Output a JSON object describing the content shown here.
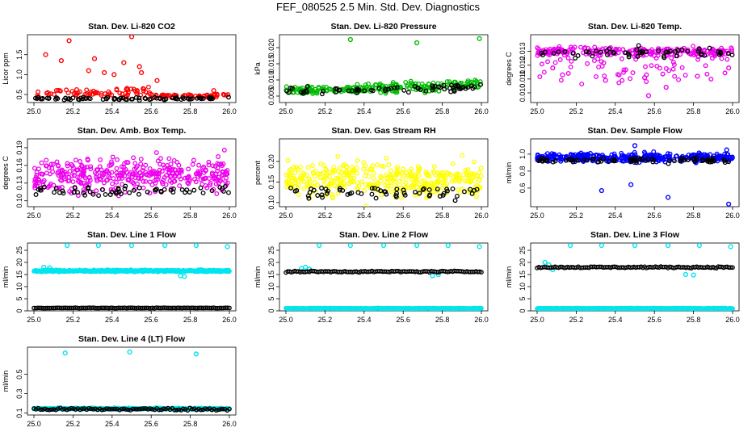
{
  "title": "FEF_080525  2.5 Min. Std. Dev. Diagnostics",
  "chart_data": [
    {
      "type": "scatter",
      "title": "Stan. Dev. Li-820 CO2",
      "ylabel": "Licor ppm",
      "xlim": [
        25.0,
        26.0
      ],
      "ylim": [
        0.3,
        2.0
      ],
      "xticks": [
        "25.0",
        "25.2",
        "25.4",
        "25.6",
        "25.8",
        "26.0"
      ],
      "yticks": [
        "0.5",
        "1.0",
        "1.5"
      ],
      "ytick_values": [
        0.5,
        1.0,
        1.5
      ],
      "series": [
        {
          "name": "red",
          "color": "#ff0000",
          "base": 0.55,
          "spread": 0.12,
          "n": 130,
          "cutoff": 0.62,
          "outliers": [
            [
              25.06,
              1.5
            ],
            [
              25.14,
              1.35
            ],
            [
              25.18,
              1.85
            ],
            [
              25.28,
              1.1
            ],
            [
              25.31,
              1.4
            ],
            [
              25.36,
              1.05
            ],
            [
              25.41,
              1.0
            ],
            [
              25.46,
              1.3
            ],
            [
              25.5,
              1.95
            ],
            [
              25.54,
              1.2
            ],
            [
              25.55,
              1.05
            ],
            [
              25.63,
              0.85
            ],
            [
              25.92,
              0.6
            ]
          ]
        },
        {
          "name": "black",
          "color": "#000000",
          "base": 0.4,
          "spread": 0.03,
          "n": 80
        }
      ]
    },
    {
      "type": "scatter",
      "title": "Stan. Dev. Li-820 Pressure",
      "ylabel": "kPa",
      "xlim": [
        25.0,
        26.0
      ],
      "ylim": [
        0.003,
        0.024
      ],
      "xticks": [
        "25.0",
        "25.2",
        "25.4",
        "25.6",
        "25.8",
        "26.0"
      ],
      "yticks": [
        "0.005",
        "0.010",
        "0.015",
        "0.020"
      ],
      "ytick_values": [
        0.005,
        0.01,
        0.015,
        0.02
      ],
      "series": [
        {
          "name": "green",
          "color": "#00bb00",
          "base": 0.0065,
          "spread": 0.0015,
          "trend": 0.002,
          "n": 230,
          "outliers": [
            [
              25.33,
              0.0225
            ],
            [
              25.67,
              0.0215
            ],
            [
              25.99,
              0.0228
            ]
          ]
        },
        {
          "name": "black",
          "color": "#000000",
          "base": 0.0062,
          "spread": 0.0011,
          "trend": 0.0015,
          "n": 70
        }
      ]
    },
    {
      "type": "scatter",
      "title": "Stan. Dev. Li-820 Temp.",
      "ylabel": "degrees C",
      "xlim": [
        25.0,
        26.0
      ],
      "ylim": [
        0.0093,
        0.0142
      ],
      "xticks": [
        "25.0",
        "25.2",
        "25.4",
        "25.6",
        "25.8",
        "26.0"
      ],
      "yticks": [
        "0.010",
        "0.011",
        "0.012",
        "0.013"
      ],
      "ytick_values": [
        0.01,
        0.011,
        0.012,
        0.013
      ],
      "series": [
        {
          "name": "magenta",
          "color": "#ee00ee",
          "base": 0.013,
          "spread": 0.0003,
          "n": 300,
          "tail": 0.0022,
          "outliers": [
            [
              25.08,
              0.0118
            ],
            [
              25.13,
              0.0113
            ],
            [
              25.35,
              0.0109
            ],
            [
              25.55,
              0.0111
            ],
            [
              25.66,
              0.0104
            ],
            [
              25.82,
              0.0112
            ],
            [
              25.57,
              0.0098
            ],
            [
              25.98,
              0.0118
            ]
          ]
        },
        {
          "name": "black",
          "color": "#000000",
          "base": 0.0129,
          "spread": 0.0004,
          "n": 55
        }
      ]
    },
    {
      "type": "scatter",
      "title": "Stan. Dev. Amb. Box Temp.",
      "ylabel": "degrees C",
      "xlim": [
        25.0,
        26.0
      ],
      "ylim": [
        0.09,
        0.205
      ],
      "xticks": [
        "25.0",
        "25.2",
        "25.4",
        "25.6",
        "25.8",
        "26.0"
      ],
      "yticks": [
        "0.10",
        "0.13",
        "0.16",
        "0.19"
      ],
      "ytick_values": [
        0.1,
        0.13,
        0.16,
        0.19
      ],
      "series": [
        {
          "name": "magenta",
          "color": "#ee00ee",
          "base": 0.145,
          "spread": 0.028,
          "n": 380
        },
        {
          "name": "black",
          "color": "#000000",
          "base": 0.117,
          "spread": 0.008,
          "n": 60
        }
      ]
    },
    {
      "type": "scatter",
      "title": "Stan. Dev. Gas Stream RH",
      "ylabel": "percent",
      "xlim": [
        25.0,
        26.0
      ],
      "ylim": [
        0.09,
        0.255
      ],
      "xticks": [
        "25.0",
        "25.2",
        "25.4",
        "25.6",
        "25.8",
        "26.0"
      ],
      "yticks": [
        "0.10",
        "0.15",
        "0.20"
      ],
      "ytick_values": [
        0.1,
        0.15,
        0.2
      ],
      "series": [
        {
          "name": "yellow",
          "color": "#ffff00",
          "base": 0.155,
          "spread": 0.04,
          "n": 380
        },
        {
          "name": "black",
          "color": "#000000",
          "base": 0.125,
          "spread": 0.015,
          "n": 60
        }
      ]
    },
    {
      "type": "scatter",
      "title": "Stan. Dev. Sample Flow",
      "ylabel": "ml/min",
      "xlim": [
        25.0,
        26.0
      ],
      "ylim": [
        0.38,
        1.18
      ],
      "xticks": [
        "25.0",
        "25.2",
        "25.4",
        "25.6",
        "25.8",
        "26.0"
      ],
      "yticks": [
        "0.6",
        "0.8",
        "1.0"
      ],
      "ytick_values": [
        0.6,
        0.8,
        1.0
      ],
      "series": [
        {
          "name": "blue",
          "color": "#0000ff",
          "base": 0.96,
          "spread": 0.05,
          "n": 380,
          "outliers": [
            [
              25.33,
              0.57
            ],
            [
              25.48,
              0.64
            ],
            [
              25.5,
              1.1
            ],
            [
              25.67,
              0.49
            ],
            [
              25.98,
              0.41
            ],
            [
              25.97,
              1.05
            ]
          ]
        },
        {
          "name": "black",
          "color": "#000000",
          "base": 0.93,
          "spread": 0.03,
          "n": 80
        }
      ]
    },
    {
      "type": "scatter",
      "title": "Stan. Dev. Line 1 Flow",
      "ylabel": "ml/min",
      "xlim": [
        25.0,
        26.0
      ],
      "ylim": [
        0,
        28
      ],
      "xticks": [
        "25.0",
        "25.2",
        "25.4",
        "25.6",
        "25.8",
        "26.0"
      ],
      "yticks": [
        "0",
        "5",
        "10",
        "15",
        "20",
        "25"
      ],
      "ytick_values": [
        0,
        5,
        10,
        15,
        20,
        25
      ],
      "series": [
        {
          "name": "cyan",
          "color": "#00e5ee",
          "base": 16.5,
          "spread": 0.4,
          "n": 400,
          "dense": true,
          "outliers": [
            [
              25.17,
              27
            ],
            [
              25.33,
              27
            ],
            [
              25.5,
              27
            ],
            [
              25.67,
              27
            ],
            [
              25.83,
              27
            ],
            [
              25.99,
              26.5
            ],
            [
              25.05,
              18
            ],
            [
              25.08,
              17.8
            ],
            [
              25.75,
              14.5
            ],
            [
              25.77,
              14.2
            ]
          ]
        },
        {
          "name": "black",
          "color": "#000000",
          "base": 1.2,
          "spread": 0.1,
          "n": 100,
          "dense": true
        }
      ]
    },
    {
      "type": "scatter",
      "title": "Stan. Dev. Line 2 Flow",
      "ylabel": "ml/min",
      "xlim": [
        25.0,
        26.0
      ],
      "ylim": [
        0,
        28
      ],
      "xticks": [
        "25.0",
        "25.2",
        "25.4",
        "25.6",
        "25.8",
        "26.0"
      ],
      "yticks": [
        "0",
        "5",
        "10",
        "15",
        "20",
        "25"
      ],
      "ytick_values": [
        0,
        5,
        10,
        15,
        20,
        25
      ],
      "series": [
        {
          "name": "cyan",
          "color": "#00e5ee",
          "base": 1.0,
          "spread": 0.15,
          "n": 400,
          "dense": true,
          "outliers": [
            [
              25.17,
              27
            ],
            [
              25.33,
              27
            ],
            [
              25.5,
              27
            ],
            [
              25.67,
              27
            ],
            [
              25.83,
              27
            ],
            [
              25.99,
              26.5
            ],
            [
              25.1,
              18
            ],
            [
              25.08,
              17.5
            ],
            [
              25.12,
              17.2
            ],
            [
              25.75,
              14.5
            ],
            [
              25.78,
              15.0
            ]
          ]
        },
        {
          "name": "black",
          "color": "#000000",
          "base": 16.2,
          "spread": 0.3,
          "n": 110,
          "dense": true
        }
      ]
    },
    {
      "type": "scatter",
      "title": "Stan. Dev. Line 3 Flow",
      "ylabel": "ml/min",
      "xlim": [
        25.0,
        26.0
      ],
      "ylim": [
        0,
        28
      ],
      "xticks": [
        "25.0",
        "25.2",
        "25.4",
        "25.6",
        "25.8",
        "26.0"
      ],
      "yticks": [
        "0",
        "5",
        "10",
        "15",
        "20",
        "25"
      ],
      "ytick_values": [
        0,
        5,
        10,
        15,
        20,
        25
      ],
      "series": [
        {
          "name": "cyan",
          "color": "#00e5ee",
          "base": 1.0,
          "spread": 0.15,
          "n": 400,
          "dense": true,
          "outliers": [
            [
              25.17,
              27
            ],
            [
              25.33,
              27
            ],
            [
              25.5,
              27
            ],
            [
              25.67,
              27
            ],
            [
              25.83,
              27
            ],
            [
              25.99,
              26.5
            ],
            [
              25.04,
              20
            ],
            [
              25.06,
              19
            ],
            [
              25.08,
              17
            ],
            [
              25.76,
              15
            ],
            [
              25.8,
              14.8
            ]
          ]
        },
        {
          "name": "black",
          "color": "#000000",
          "base": 18.0,
          "spread": 0.3,
          "n": 110,
          "dense": true
        }
      ]
    },
    {
      "type": "scatter",
      "title": "Stan. Dev. Line 4 (LT) Flow",
      "ylabel": "ml/min",
      "xlim": [
        25.0,
        26.0
      ],
      "ylim": [
        0.08,
        0.78
      ],
      "xticks": [
        "25.0",
        "25.2",
        "25.4",
        "25.6",
        "25.8",
        "26.0"
      ],
      "yticks": [
        "0.1",
        "0.3",
        "0.5"
      ],
      "ytick_values": [
        0.1,
        0.3,
        0.5
      ],
      "series": [
        {
          "name": "cyan",
          "color": "#00e5ee",
          "base": 0.145,
          "spread": 0.008,
          "n": 400,
          "dense": true,
          "outliers": [
            [
              25.16,
              0.72
            ],
            [
              25.49,
              0.73
            ],
            [
              25.83,
              0.71
            ]
          ]
        },
        {
          "name": "black",
          "color": "#000000",
          "base": 0.14,
          "spread": 0.012,
          "n": 90,
          "dense": true
        }
      ]
    }
  ]
}
